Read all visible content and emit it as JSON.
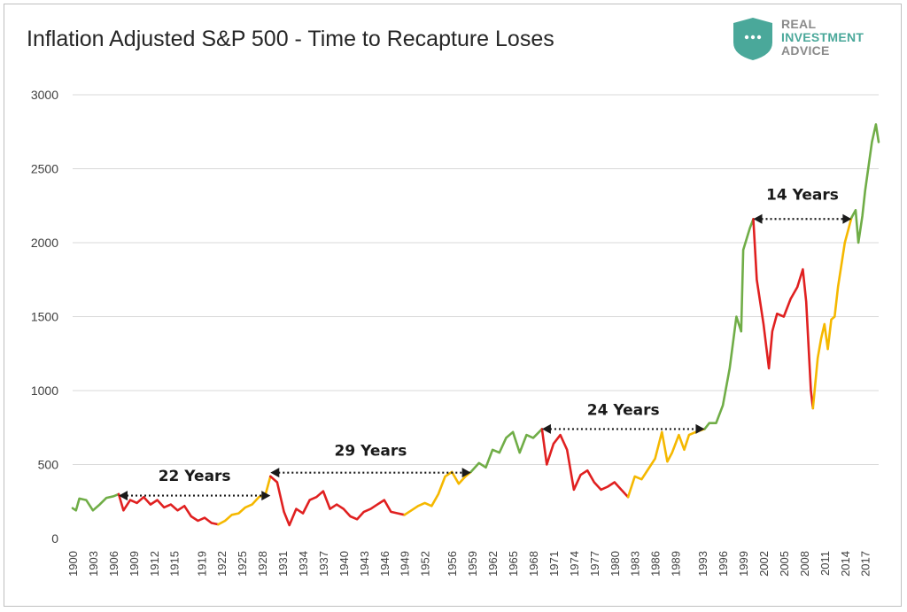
{
  "chart_data": {
    "type": "line",
    "title": "Inflation Adjusted S&P 500 - Time to Recapture Loses",
    "xlabel": "",
    "ylabel": "",
    "ylim": [
      0,
      3000
    ],
    "xlim": [
      1900,
      2019
    ],
    "yticks": [
      0,
      500,
      1000,
      1500,
      2000,
      2500,
      3000
    ],
    "xticks": [
      "1900",
      "1903",
      "1906",
      "1909",
      "1912",
      "1915",
      "1919",
      "1922",
      "1925",
      "1928",
      "1931",
      "1934",
      "1937",
      "1940",
      "1943",
      "1946",
      "1949",
      "1952",
      "1956",
      "1959",
      "1962",
      "1965",
      "1968",
      "1971",
      "1974",
      "1977",
      "1980",
      "1983",
      "1986",
      "1989",
      "1993",
      "1996",
      "1999",
      "2002",
      "2005",
      "2008",
      "2011",
      "2014",
      "2017"
    ],
    "grid": "horizontal",
    "colors": {
      "advance": "#70ad47",
      "decline": "#e02020",
      "recovery": "#f5b800",
      "grid": "#d9d9d9"
    },
    "series": [
      {
        "phase": "advance",
        "x": [
          1900,
          1900.5,
          1901,
          1902,
          1903,
          1904,
          1905,
          1906,
          1906.8
        ],
        "y": [
          205,
          190,
          270,
          260,
          190,
          230,
          275,
          285,
          300
        ]
      },
      {
        "phase": "decline",
        "x": [
          1906.8,
          1907.5,
          1908.5,
          1909.5,
          1910.5,
          1911.5,
          1912.5,
          1913.5,
          1914.5,
          1915.5,
          1916.5,
          1917.5,
          1918.5,
          1919.5,
          1920.5,
          1921.5
        ],
        "y": [
          300,
          190,
          260,
          240,
          280,
          230,
          260,
          210,
          230,
          190,
          220,
          150,
          120,
          140,
          105,
          95
        ]
      },
      {
        "phase": "recovery",
        "x": [
          1921.5,
          1922.5,
          1923.5,
          1924.5,
          1925.5,
          1926.5,
          1927.5,
          1928.5,
          1929.2
        ],
        "y": [
          95,
          120,
          160,
          170,
          210,
          230,
          280,
          300,
          420
        ]
      },
      {
        "phase": "decline",
        "x": [
          1929.2,
          1930.2,
          1931.2,
          1932,
          1933,
          1934,
          1935,
          1936,
          1937,
          1938,
          1939,
          1940,
          1941,
          1942,
          1943,
          1944,
          1945,
          1946,
          1947,
          1948,
          1949
        ],
        "y": [
          420,
          380,
          180,
          90,
          200,
          170,
          260,
          280,
          320,
          200,
          230,
          200,
          150,
          130,
          180,
          200,
          230,
          260,
          180,
          170,
          160
        ]
      },
      {
        "phase": "recovery",
        "x": [
          1949,
          1950,
          1951,
          1952,
          1953,
          1954,
          1955,
          1956,
          1957,
          1958,
          1958.8
        ],
        "y": [
          160,
          190,
          220,
          240,
          220,
          300,
          420,
          450,
          370,
          420,
          450
        ]
      },
      {
        "phase": "advance",
        "x": [
          1958.8,
          1960,
          1961,
          1962,
          1963,
          1964,
          1965,
          1966,
          1967,
          1968,
          1969.3
        ],
        "y": [
          450,
          510,
          480,
          600,
          580,
          680,
          720,
          580,
          700,
          680,
          740
        ]
      },
      {
        "phase": "decline",
        "x": [
          1969.3,
          1970,
          1971,
          1972,
          1973,
          1974,
          1975,
          1976,
          1977,
          1978,
          1979,
          1980,
          1981,
          1982
        ],
        "y": [
          740,
          500,
          640,
          700,
          600,
          330,
          430,
          460,
          380,
          330,
          350,
          380,
          330,
          280
        ]
      },
      {
        "phase": "recovery",
        "x": [
          1982,
          1983,
          1984,
          1985,
          1986,
          1987,
          1987.8,
          1988.5,
          1989.5,
          1990.3,
          1991,
          1992,
          1993.3
        ],
        "y": [
          280,
          420,
          400,
          470,
          540,
          720,
          520,
          580,
          700,
          600,
          700,
          720,
          740
        ]
      },
      {
        "phase": "advance",
        "x": [
          1993.3,
          1994,
          1995,
          1996,
          1997,
          1998,
          1998.7,
          1999,
          2000,
          2000.5
        ],
        "y": [
          740,
          780,
          780,
          900,
          1150,
          1500,
          1400,
          1950,
          2100,
          2160
        ]
      },
      {
        "phase": "decline",
        "x": [
          2000.5,
          2001,
          2001.5,
          2002,
          2002.8,
          2003.3,
          2004,
          2005,
          2006,
          2007,
          2007.8,
          2008.3,
          2009,
          2009.3
        ],
        "y": [
          2160,
          1750,
          1600,
          1450,
          1150,
          1400,
          1520,
          1500,
          1620,
          1700,
          1820,
          1600,
          1000,
          880
        ]
      },
      {
        "phase": "recovery",
        "x": [
          2009.3,
          2010,
          2010.5,
          2011,
          2011.5,
          2012,
          2012.5,
          2013,
          2014,
          2015
        ],
        "y": [
          880,
          1220,
          1350,
          1450,
          1280,
          1480,
          1500,
          1700,
          2000,
          2170
        ]
      },
      {
        "phase": "advance",
        "x": [
          2015,
          2015.6,
          2016,
          2016.6,
          2017,
          2018,
          2018.6,
          2019
        ],
        "y": [
          2170,
          2220,
          2000,
          2180,
          2350,
          2680,
          2800,
          2680
        ]
      }
    ],
    "annotations": [
      {
        "label": "22 Years",
        "x_start": 1906.8,
        "x_end": 1929.2,
        "y": 290,
        "label_y": 390
      },
      {
        "label": "29 Years",
        "x_start": 1929.2,
        "x_end": 1958.8,
        "y": 445,
        "label_y": 560
      },
      {
        "label": "24 Years",
        "x_start": 1969.3,
        "x_end": 1993.3,
        "y": 740,
        "label_y": 835
      },
      {
        "label": "14 Years",
        "x_start": 2000.5,
        "x_end": 2015,
        "y": 2160,
        "label_y": 2290
      }
    ]
  },
  "logo": {
    "line1": "REAL",
    "line2": "INVESTMENT",
    "line3": "ADVICE"
  }
}
